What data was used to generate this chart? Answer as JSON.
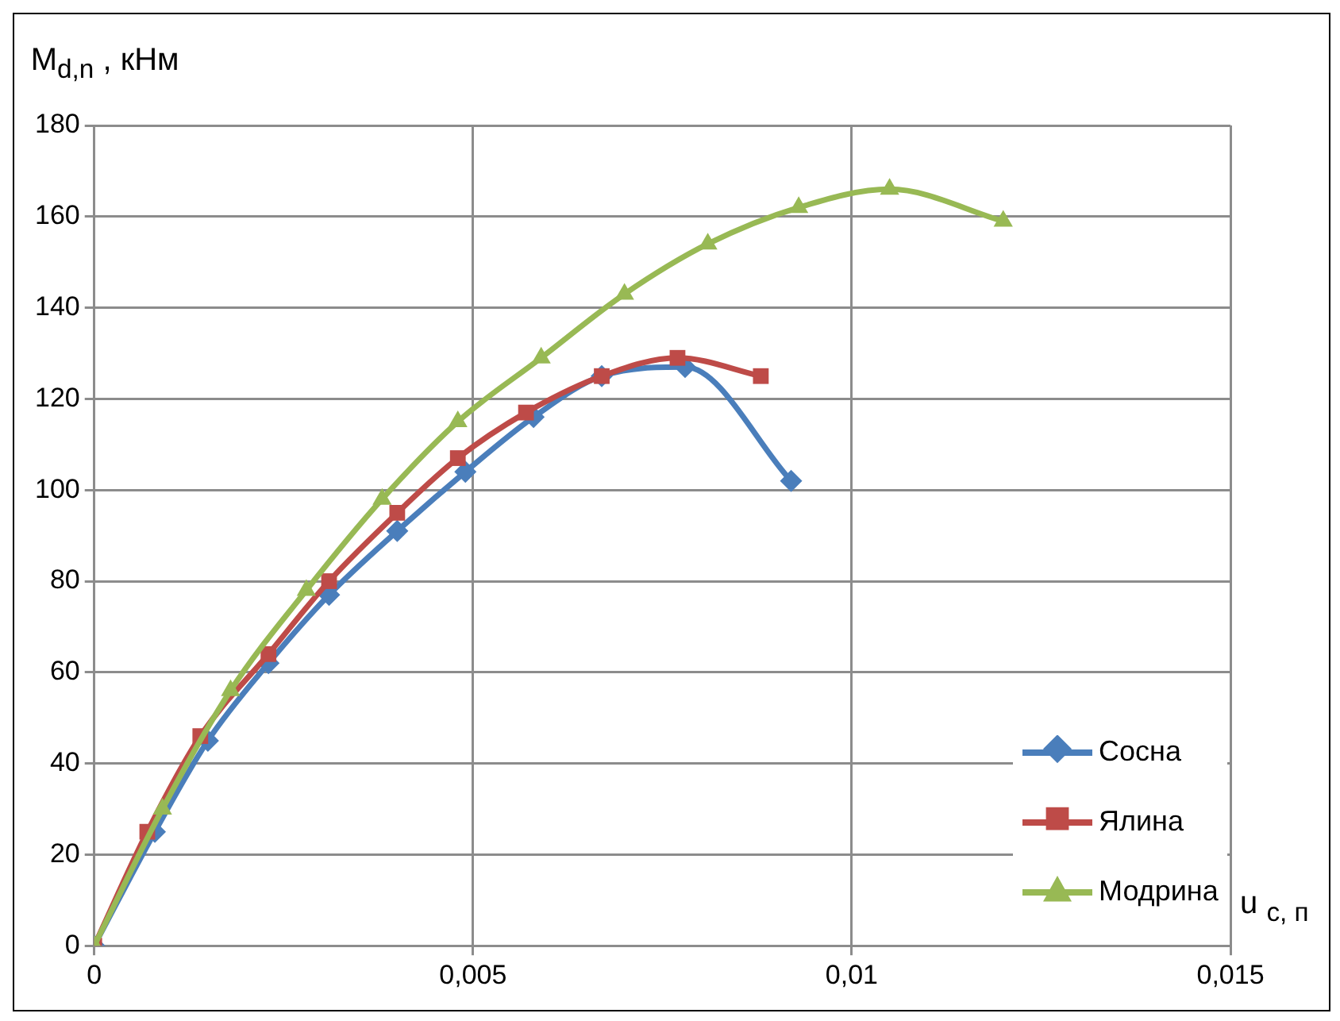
{
  "chart_data": {
    "type": "line",
    "xlabel": "u $_{c, п}$",
    "ylabel": "M$_{d,n}$ , кНм",
    "xlim": [
      0,
      0.015
    ],
    "xticks": [
      0,
      {
        "value": 0.005,
        "label": "0,005"
      },
      {
        "value": 0.01,
        "label": "0,01"
      },
      {
        "value": 0.015,
        "label": "0,015"
      }
    ],
    "ylim": [
      0,
      180
    ],
    "yticks": [
      0,
      20,
      40,
      60,
      80,
      100,
      120,
      140,
      160,
      180
    ],
    "grid": true,
    "legend": "bottom right",
    "line_style": "solid",
    "series": [
      {
        "name": "Сосна",
        "color": "#4a7ebb",
        "marker": "diamond",
        "x": [
          0,
          0.0008,
          0.0015,
          0.0023,
          0.0031,
          0.004,
          0.0049,
          0.0058,
          0.0067,
          0.0078,
          0.0092
        ],
        "values": [
          0,
          25,
          45,
          62,
          77,
          91,
          104,
          116,
          125,
          127,
          102
        ]
      },
      {
        "name": "Ялина",
        "color": "#be4b48",
        "marker": "square",
        "x": [
          0,
          0.0007,
          0.0014,
          0.0023,
          0.0031,
          0.004,
          0.0048,
          0.0057,
          0.0067,
          0.0077,
          0.0088
        ],
        "values": [
          0,
          25,
          46,
          64,
          80,
          95,
          107,
          117,
          125,
          129,
          125
        ]
      },
      {
        "name": "Модрина",
        "color": "#98b954",
        "marker": "triangle",
        "x": [
          0,
          0.0009,
          0.0018,
          0.0028,
          0.0038,
          0.0048,
          0.0059,
          0.007,
          0.0081,
          0.0093,
          0.0105,
          0.012
        ],
        "values": [
          0,
          30,
          56,
          78,
          98,
          115,
          129,
          143,
          154,
          162,
          166,
          159
        ]
      }
    ]
  }
}
